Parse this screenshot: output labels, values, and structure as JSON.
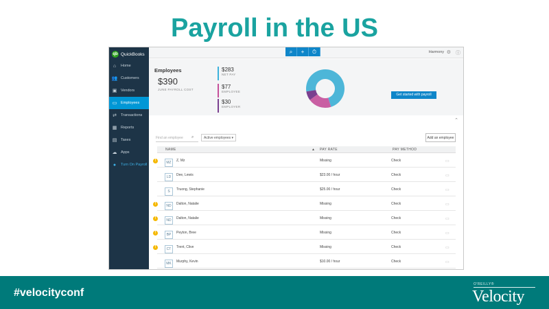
{
  "slide": {
    "title": "Payroll in the US",
    "hashtag": "#velocityconf",
    "publisher": "O'REILLY®",
    "brand": "Velocity"
  },
  "app": {
    "logo_text": "QuickBooks",
    "logo_mark": "qb",
    "company": "Harmony",
    "top_buttons": [
      "⌕",
      "+",
      "⏱"
    ],
    "nav": [
      {
        "label": "Home",
        "icon": "home-icon",
        "glyph": "⌂"
      },
      {
        "label": "Customers",
        "icon": "customers-icon",
        "glyph": "👥"
      },
      {
        "label": "Vendors",
        "icon": "vendors-icon",
        "glyph": "▣"
      },
      {
        "label": "Employees",
        "icon": "employees-icon",
        "glyph": "▭",
        "active": true
      },
      {
        "label": "Transactions",
        "icon": "transactions-icon",
        "glyph": "⇄"
      },
      {
        "label": "Reports",
        "icon": "reports-icon",
        "glyph": "▦"
      },
      {
        "label": "Taxes",
        "icon": "taxes-icon",
        "glyph": "▤"
      },
      {
        "label": "Apps",
        "icon": "apps-icon",
        "glyph": "☁"
      },
      {
        "label": "Turn On Payroll",
        "icon": "payroll-icon",
        "glyph": "●",
        "accent": true
      }
    ]
  },
  "summary": {
    "title": "Employees",
    "total": "$390",
    "total_caption": "JUNE PAYROLL COST",
    "metrics": [
      {
        "value": "$283",
        "label": "NET PAY",
        "color": "#3bb1dc"
      },
      {
        "value": "$77",
        "label": "EMPLOYEE",
        "color": "#c54f9a"
      },
      {
        "value": "$30",
        "label": "EMPLOYER",
        "color": "#7a3f8f"
      }
    ],
    "donut": [
      {
        "label": "NET PAY",
        "value": 283,
        "color": "#4db6d8"
      },
      {
        "label": "EMPLOYEE",
        "value": 77,
        "color": "#c95fa3"
      },
      {
        "label": "EMPLOYER",
        "value": 30,
        "color": "#7a3f8f"
      }
    ],
    "cta": "Get started with payroll"
  },
  "filters": {
    "search_placeholder": "Find an employee",
    "status": "Active employees",
    "add_button": "Add an employee"
  },
  "table": {
    "headers": [
      "NAME",
      "PAY RATE",
      "PAY METHOD"
    ],
    "sort_indicator": "▲",
    "rows": [
      {
        "initials": "MZ",
        "name": "Z, Mz",
        "pay_rate": "Missing",
        "pay_method": "Check",
        "warn": true
      },
      {
        "initials": "LD",
        "name": "Dee, Lewis",
        "pay_rate": "$23.00 / hour",
        "pay_method": "Check",
        "warn": false
      },
      {
        "initials": "S",
        "name": "Truong, Stephanie",
        "pay_rate": "$25.00 / hour",
        "pay_method": "Check",
        "warn": false
      },
      {
        "initials": "ND",
        "name": "Dalton, Natalie",
        "pay_rate": "Missing",
        "pay_method": "Check",
        "warn": true
      },
      {
        "initials": "ND",
        "name": "Dalton, Natalie",
        "pay_rate": "Missing",
        "pay_method": "Check",
        "warn": true
      },
      {
        "initials": "BP",
        "name": "Peyton, Bree",
        "pay_rate": "Missing",
        "pay_method": "Check",
        "warn": true
      },
      {
        "initials": "CT",
        "name": "Trent, Clive",
        "pay_rate": "Missing",
        "pay_method": "Check",
        "warn": true
      },
      {
        "initials": "MK",
        "name": "Murphy, Kevin",
        "pay_rate": "$10.00 / hour",
        "pay_method": "Check",
        "warn": false
      }
    ]
  }
}
